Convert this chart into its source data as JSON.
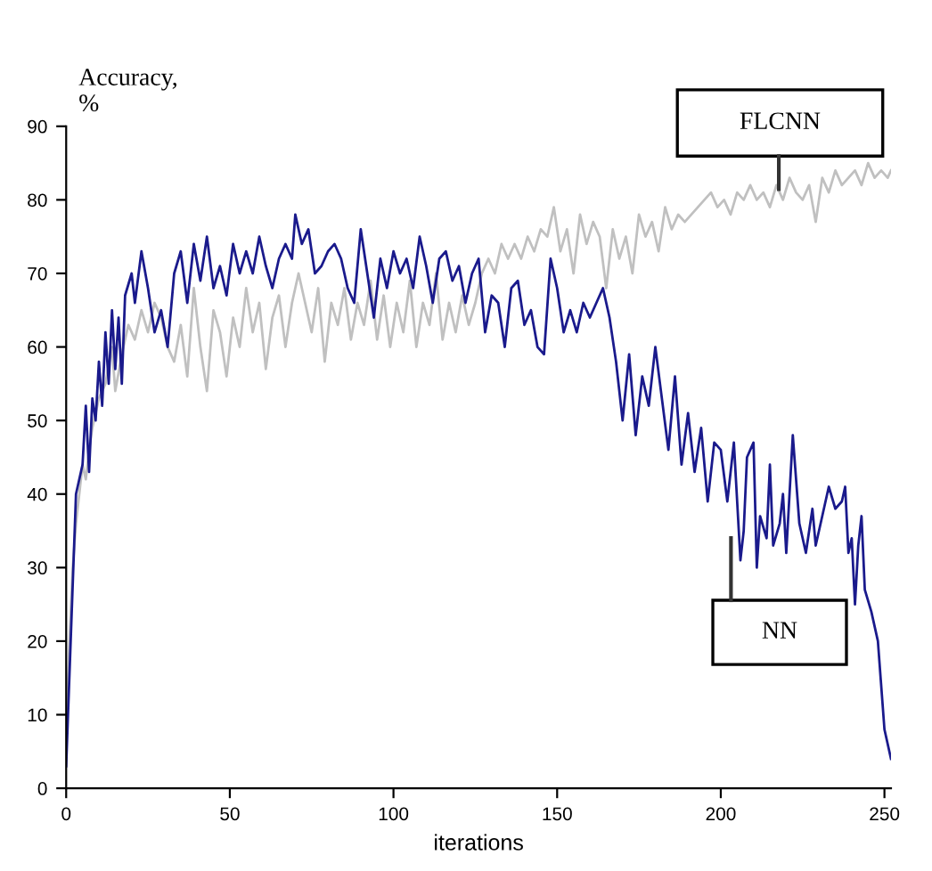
{
  "chart_data": {
    "type": "line",
    "ylabel": "Accuracy,\n%",
    "xlabel": "iterations",
    "xlim": [
      0,
      252
    ],
    "ylim": [
      0,
      90
    ],
    "xticks": [
      0,
      50,
      100,
      150,
      200,
      250
    ],
    "yticks": [
      0,
      10,
      20,
      30,
      40,
      50,
      60,
      70,
      80,
      90
    ],
    "grid": false,
    "legend": false,
    "line_style": "solid",
    "marker": "none",
    "series": [
      {
        "name": "FLCNN",
        "color": "#c0c0c0",
        "x": [
          0,
          1,
          2,
          3,
          4,
          5,
          6,
          7,
          8,
          10,
          12,
          14,
          15,
          17,
          19,
          21,
          23,
          25,
          27,
          29,
          31,
          33,
          35,
          37,
          39,
          41,
          43,
          45,
          47,
          49,
          51,
          53,
          55,
          57,
          59,
          61,
          63,
          65,
          67,
          69,
          71,
          73,
          75,
          77,
          79,
          81,
          83,
          85,
          87,
          89,
          91,
          93,
          95,
          97,
          99,
          101,
          103,
          105,
          107,
          109,
          111,
          113,
          115,
          117,
          119,
          121,
          123,
          125,
          127,
          129,
          131,
          133,
          135,
          137,
          139,
          141,
          143,
          145,
          147,
          149,
          151,
          153,
          155,
          157,
          159,
          161,
          163,
          165,
          167,
          169,
          171,
          173,
          175,
          177,
          179,
          181,
          183,
          185,
          187,
          189,
          191,
          193,
          195,
          197,
          199,
          201,
          203,
          205,
          207,
          209,
          211,
          213,
          215,
          217,
          219,
          221,
          223,
          225,
          227,
          229,
          231,
          233,
          235,
          237,
          239,
          241,
          243,
          245,
          247,
          249,
          251,
          252
        ],
        "values": [
          8,
          20,
          30,
          36,
          40,
          44,
          42,
          46,
          49,
          53,
          55,
          60,
          54,
          59,
          63,
          61,
          65,
          62,
          66,
          64,
          60,
          58,
          63,
          56,
          68,
          60,
          54,
          65,
          62,
          56,
          64,
          60,
          68,
          62,
          66,
          57,
          64,
          67,
          60,
          66,
          70,
          66,
          62,
          68,
          58,
          66,
          63,
          68,
          61,
          66,
          63,
          69,
          61,
          67,
          60,
          66,
          62,
          69,
          60,
          66,
          63,
          70,
          61,
          66,
          62,
          67,
          63,
          66,
          70,
          72,
          70,
          74,
          72,
          74,
          72,
          75,
          73,
          76,
          75,
          79,
          73,
          76,
          70,
          78,
          74,
          77,
          75,
          68,
          76,
          72,
          75,
          70,
          78,
          75,
          77,
          73,
          79,
          76,
          78,
          77,
          78,
          79,
          80,
          81,
          79,
          80,
          78,
          81,
          80,
          82,
          80,
          81,
          79,
          82,
          80,
          83,
          81,
          80,
          82,
          77,
          83,
          81,
          84,
          82,
          83,
          84,
          82,
          85,
          83,
          84,
          83,
          84
        ]
      },
      {
        "name": "NN",
        "color": "#1a1a8c",
        "x": [
          0,
          3,
          5,
          6,
          7,
          8,
          9,
          10,
          11,
          12,
          13,
          14,
          15,
          16,
          17,
          18,
          20,
          21,
          23,
          25,
          27,
          29,
          31,
          33,
          35,
          37,
          39,
          41,
          43,
          45,
          47,
          49,
          51,
          53,
          55,
          57,
          59,
          61,
          63,
          65,
          67,
          69,
          70,
          72,
          74,
          76,
          78,
          80,
          82,
          84,
          86,
          88,
          90,
          92,
          94,
          96,
          98,
          100,
          102,
          104,
          106,
          108,
          110,
          112,
          114,
          116,
          118,
          120,
          122,
          124,
          126,
          128,
          130,
          132,
          134,
          136,
          138,
          140,
          142,
          144,
          146,
          148,
          150,
          152,
          154,
          156,
          158,
          160,
          162,
          164,
          166,
          168,
          170,
          172,
          174,
          176,
          178,
          180,
          182,
          184,
          186,
          188,
          190,
          192,
          194,
          196,
          198,
          200,
          202,
          204,
          206,
          207,
          208,
          210,
          211,
          212,
          214,
          215,
          216,
          218,
          219,
          220,
          222,
          224,
          226,
          228,
          229,
          231,
          233,
          235,
          237,
          238,
          239,
          240,
          241,
          242,
          243,
          244,
          246,
          248,
          249,
          250,
          252
        ],
        "values": [
          3,
          40,
          44,
          52,
          43,
          53,
          50,
          58,
          52,
          62,
          55,
          65,
          57,
          64,
          55,
          67,
          70,
          66,
          73,
          68,
          62,
          65,
          60,
          70,
          73,
          66,
          74,
          69,
          75,
          68,
          71,
          67,
          74,
          70,
          73,
          70,
          75,
          71,
          68,
          72,
          74,
          72,
          78,
          74,
          76,
          70,
          71,
          73,
          74,
          72,
          68,
          66,
          76,
          70,
          64,
          72,
          68,
          73,
          70,
          72,
          68,
          75,
          71,
          66,
          72,
          73,
          69,
          71,
          66,
          70,
          72,
          62,
          67,
          66,
          60,
          68,
          69,
          63,
          65,
          60,
          59,
          72,
          68,
          62,
          65,
          62,
          66,
          64,
          66,
          68,
          64,
          58,
          50,
          59,
          48,
          56,
          52,
          60,
          53,
          46,
          56,
          44,
          51,
          43,
          49,
          39,
          47,
          46,
          39,
          47,
          31,
          35,
          45,
          47,
          30,
          37,
          34,
          44,
          33,
          36,
          40,
          32,
          48,
          36,
          32,
          38,
          33,
          37,
          41,
          38,
          39,
          41,
          32,
          34,
          25,
          33,
          37,
          27,
          24,
          20,
          14,
          8,
          4
        ]
      }
    ]
  }
}
